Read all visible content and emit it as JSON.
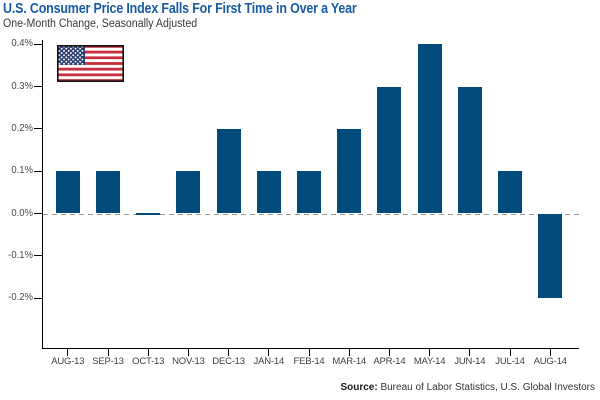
{
  "header": {
    "title": "U.S. Consumer Price Index Falls For First Time in Over a Year",
    "subtitle": "One-Month Change, Seasonally Adjusted"
  },
  "footer": {
    "source_label": "Source:",
    "source_text": " Bureau of Labor Statistics, U.S. Global Investors"
  },
  "colors": {
    "bar": "#004a7c",
    "title": "#1a5aa6",
    "axis": "#000000",
    "zero_line": "#9a9a9a",
    "flag_red": "#c62f3b",
    "flag_blue": "#2b3d71",
    "flag_border": "#111111"
  },
  "icons": {
    "flag": "us-flag-icon"
  },
  "chart_data": {
    "type": "bar",
    "title": "U.S. Consumer Price Index Falls For First Time in Over a Year",
    "subtitle": "One-Month Change, Seasonally Adjusted",
    "unit": "% (one-month change)",
    "categories": [
      "AUG-13",
      "SEP-13",
      "OCT-13",
      "NOV-13",
      "DEC-13",
      "JAN-14",
      "FEB-14",
      "MAR-14",
      "APR-14",
      "MAY-14",
      "JUN-14",
      "JUL-14",
      "AUG-14"
    ],
    "values": [
      0.1,
      0.1,
      0.0,
      0.1,
      0.2,
      0.1,
      0.1,
      0.2,
      0.3,
      0.4,
      0.3,
      0.1,
      -0.2
    ],
    "y_ticks": [
      "0.4%",
      "0.3%",
      "0.2%",
      "0.1%",
      "0.0%",
      "-0.1%",
      "-0.2%"
    ],
    "y_tick_values": [
      0.4,
      0.3,
      0.2,
      0.1,
      0.0,
      -0.1,
      -0.2
    ],
    "ylim": [
      -0.32,
      0.41
    ],
    "xlabel": "",
    "ylabel": "",
    "grid": false,
    "zero_line": "dashed",
    "legend": "none",
    "source": "Bureau of Labor Statistics, U.S. Global Investors"
  }
}
